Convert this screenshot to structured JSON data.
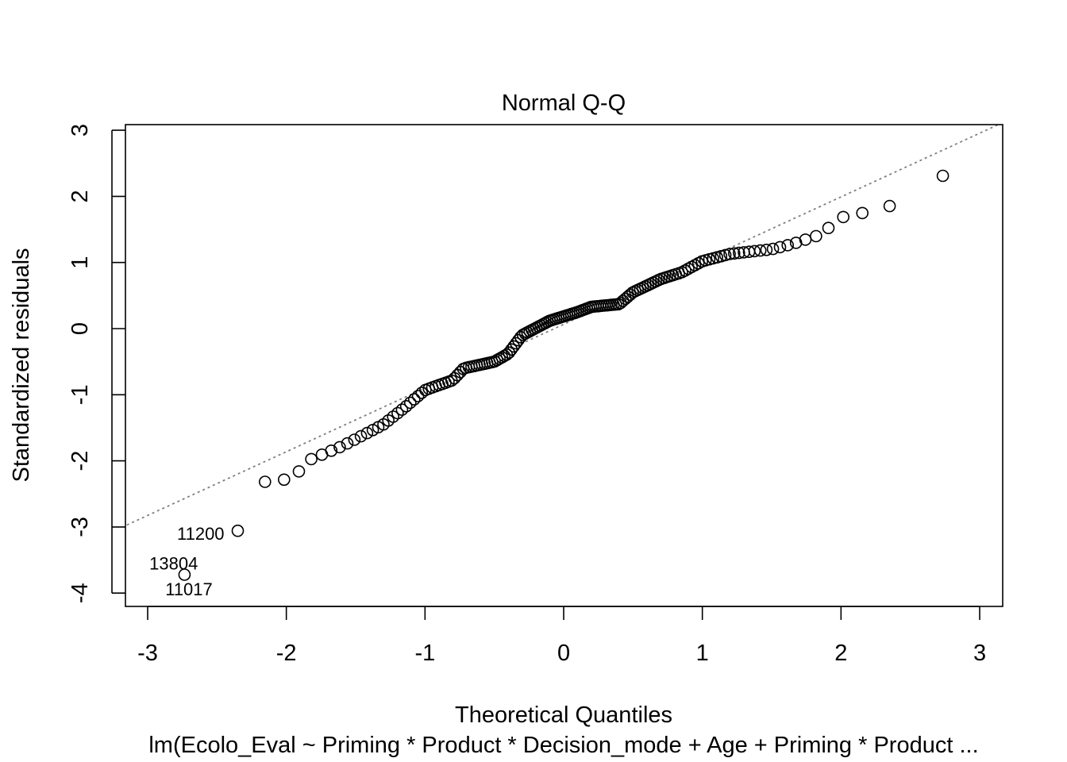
{
  "chart_data": {
    "type": "scatter",
    "title": "Normal Q-Q",
    "xlabel": "Theoretical Quantiles",
    "ylabel": "Standardized residuals",
    "subtitle": "lm(Ecolo_Eval ~ Priming * Product * Decision_mode + Age + Priming * Product ...",
    "xlim": [
      -3.15,
      3.15
    ],
    "ylim": [
      -4.2,
      3.1
    ],
    "xticks": [
      "-3",
      "-2",
      "-1",
      "0",
      "1",
      "2",
      "3"
    ],
    "yticks": [
      "-4",
      "-3",
      "-2",
      "-1",
      "0",
      "1",
      "2",
      "3"
    ],
    "reference_line": {
      "style": "dotted",
      "color": "#808080",
      "points": [
        [
          -3.15,
          -2.97
        ],
        [
          3.15,
          3.1
        ]
      ]
    },
    "labeled_points": [
      {
        "label": "11200",
        "x": -2.39,
        "y": -3.1
      },
      {
        "label": "13804",
        "x": -2.58,
        "y": -3.55
      },
      {
        "label": "11017",
        "x": -2.93,
        "y": -3.94
      }
    ],
    "n_points": 160
  }
}
